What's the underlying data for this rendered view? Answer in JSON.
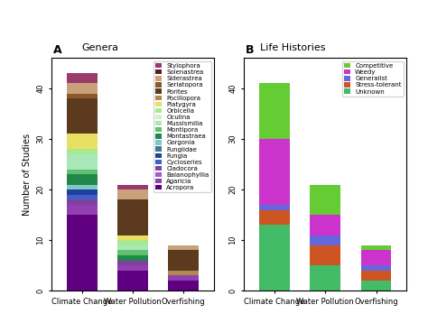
{
  "chart_data": [
    {
      "type": "bar",
      "stacked": true,
      "title": "Genera",
      "annotations": [
        "A"
      ],
      "y_label": "Number of Studies",
      "categories": [
        "Climate Change",
        "Water Pollution",
        "Overfishing"
      ],
      "ylim": [
        0,
        46
      ],
      "yticks": [
        0,
        10,
        20,
        30,
        40
      ],
      "legend": "upper right",
      "series": [
        {
          "name": "Stylophora",
          "color": "#9b3b6b",
          "values": [
            2,
            1,
            0
          ]
        },
        {
          "name": "Solenastrea",
          "color": "#5a1a2a",
          "values": [
            0,
            0,
            0
          ]
        },
        {
          "name": "Siderastrea",
          "color": "#c8a27a",
          "values": [
            2,
            2,
            1
          ]
        },
        {
          "name": "Seriatopora",
          "color": "#8b5a2b",
          "values": [
            1,
            0,
            0
          ]
        },
        {
          "name": "Porites",
          "color": "#5c3a1e",
          "values": [
            7,
            7,
            4
          ]
        },
        {
          "name": "Pocillopora",
          "color": "#b08850",
          "values": [
            0,
            0,
            1
          ]
        },
        {
          "name": "Platygyra",
          "color": "#e8e060",
          "values": [
            3,
            1,
            0
          ]
        },
        {
          "name": "Orbicella",
          "color": "#a8e890",
          "values": [
            1,
            1,
            0
          ]
        },
        {
          "name": "Oculina",
          "color": "#d8f0c0",
          "values": [
            0,
            0,
            0
          ]
        },
        {
          "name": "Mussismilia",
          "color": "#a8e8b8",
          "values": [
            3,
            1,
            0
          ]
        },
        {
          "name": "Montipora",
          "color": "#60c070",
          "values": [
            1,
            1,
            0
          ]
        },
        {
          "name": "Montastraea",
          "color": "#208848",
          "values": [
            2,
            1,
            0
          ]
        },
        {
          "name": "Gorgonia",
          "color": "#80c8c8",
          "values": [
            1,
            0,
            0
          ]
        },
        {
          "name": "Fungiidae",
          "color": "#407890",
          "values": [
            0,
            0,
            0
          ]
        },
        {
          "name": "Fungia",
          "color": "#2040a0",
          "values": [
            1,
            0,
            0
          ]
        },
        {
          "name": "Cycloseries",
          "color": "#4060c8",
          "values": [
            1,
            0,
            0
          ]
        },
        {
          "name": "Cladocora",
          "color": "#8040a0",
          "values": [
            1,
            1,
            0
          ]
        },
        {
          "name": "Balanophyllia",
          "color": "#a060c0",
          "values": [
            0,
            0,
            0
          ]
        },
        {
          "name": "Agaricia",
          "color": "#9040b0",
          "values": [
            2,
            1,
            1
          ]
        },
        {
          "name": "Acropora",
          "color": "#600080",
          "values": [
            15,
            4,
            2
          ]
        }
      ]
    },
    {
      "type": "bar",
      "stacked": true,
      "title": "Life Histories",
      "annotations": [
        "B"
      ],
      "categories": [
        "Climate Change",
        "Water Pollution",
        "Overfishing"
      ],
      "ylim": [
        0,
        46
      ],
      "yticks": [
        0,
        10,
        20,
        30,
        40
      ],
      "legend": "upper right",
      "series": [
        {
          "name": "Competitive",
          "color": "#66cc33",
          "values": [
            11,
            6,
            1
          ]
        },
        {
          "name": "Weedy",
          "color": "#cc33cc",
          "values": [
            13,
            4,
            3
          ]
        },
        {
          "name": "Generalist",
          "color": "#6666dd",
          "values": [
            1,
            2,
            1
          ]
        },
        {
          "name": "Stress-tolerant",
          "color": "#cc5522",
          "values": [
            3,
            4,
            2
          ]
        },
        {
          "name": "Unknown",
          "color": "#44bb66",
          "values": [
            13,
            5,
            2
          ]
        }
      ]
    }
  ]
}
